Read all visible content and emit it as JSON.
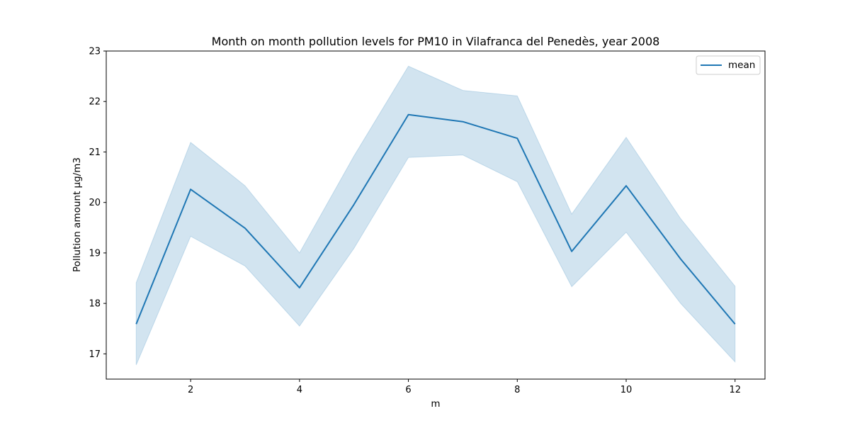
{
  "chart_data": {
    "type": "line",
    "title": "Month on month pollution levels for PM10 in Vilafranca del Penedès, year 2008",
    "xlabel": "m",
    "ylabel": "Pollution amount µg/m3",
    "xlim": [
      0.45,
      12.55
    ],
    "ylim": [
      16.5,
      23.0
    ],
    "x_ticks": [
      2,
      4,
      6,
      8,
      10,
      12
    ],
    "y_ticks": [
      17,
      18,
      19,
      20,
      21,
      22,
      23
    ],
    "x": [
      1,
      2,
      3,
      4,
      5,
      6,
      7,
      8,
      9,
      10,
      11,
      12
    ],
    "series": [
      {
        "name": "mean",
        "values": [
          17.59,
          20.26,
          19.49,
          18.31,
          19.96,
          21.74,
          21.6,
          21.27,
          19.03,
          20.33,
          18.88,
          17.59
        ],
        "ci_lower": [
          16.78,
          19.33,
          18.74,
          17.55,
          19.09,
          20.89,
          20.94,
          20.41,
          18.33,
          19.41,
          18.0,
          16.84
        ],
        "ci_upper": [
          18.41,
          21.19,
          20.33,
          19.0,
          20.92,
          22.7,
          22.22,
          22.11,
          19.77,
          21.29,
          19.68,
          18.34
        ],
        "color": "#1f77b4"
      }
    ],
    "grid": false,
    "legend_position": "top-right"
  }
}
